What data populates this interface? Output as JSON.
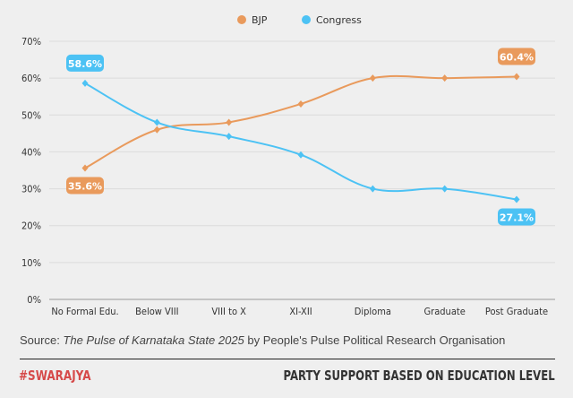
{
  "chart_data": {
    "type": "line",
    "categories": [
      "No Formal Edu.",
      "Below VIII",
      "VIII to X",
      "XI-XII",
      "Diploma",
      "Graduate",
      "Post Graduate"
    ],
    "series": [
      {
        "name": "BJP",
        "color": "#E99A5C",
        "values": [
          35.6,
          46,
          48,
          53,
          60,
          60,
          60.4
        ]
      },
      {
        "name": "Congress",
        "color": "#4CC2F4",
        "values": [
          58.6,
          48,
          44.2,
          39.2,
          30,
          30,
          27.1
        ]
      }
    ],
    "data_labels": [
      {
        "series": "BJP",
        "category": "No Formal Edu.",
        "text": "35.6%"
      },
      {
        "series": "BJP",
        "category": "Post Graduate",
        "text": "60.4%"
      },
      {
        "series": "Congress",
        "category": "No Formal Edu.",
        "text": "58.6%"
      },
      {
        "series": "Congress",
        "category": "Post Graduate",
        "text": "27.1%"
      }
    ],
    "yticks": [
      "0%",
      "10%",
      "20%",
      "30%",
      "40%",
      "50%",
      "60%",
      "70%"
    ],
    "ylim": [
      0,
      70
    ],
    "grid": true,
    "legend": "top-center",
    "title": "PARTY SUPPORT BASED ON EDUCATION LEVEL"
  },
  "footer": {
    "source_prefix": "Source: ",
    "source_title": "The Pulse of Karnataka State 2025",
    "source_suffix": " by People's Pulse Political Research Organisation",
    "brand": "#SWARAJYA",
    "title": "PARTY SUPPORT BASED ON EDUCATION LEVEL"
  }
}
